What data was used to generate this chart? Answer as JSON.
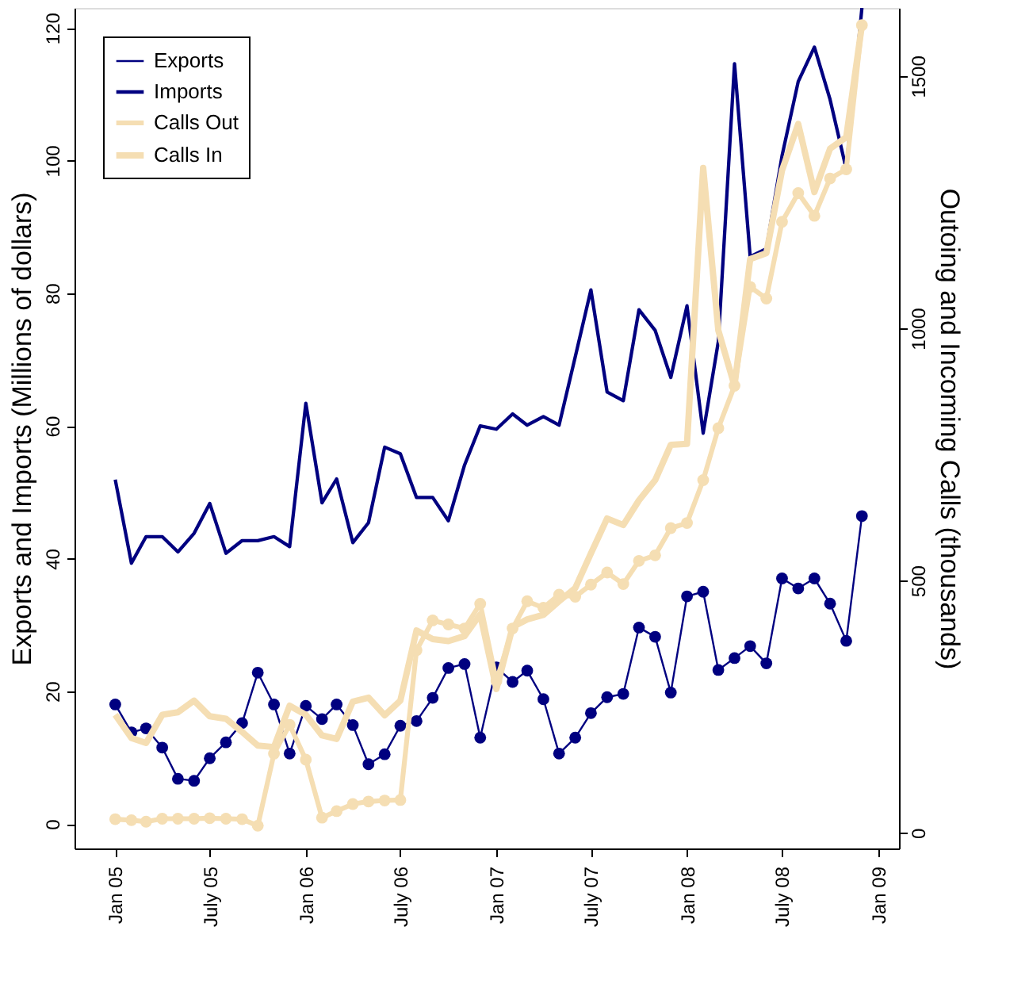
{
  "chart_data": {
    "type": "line",
    "ylabel": "Exports and Imports (Millions of dollars)",
    "y2label": "Outoing and Incoming Calls (thousands)",
    "x": [
      "2005-01",
      "2005-02",
      "2005-03",
      "2005-04",
      "2005-05",
      "2005-06",
      "2005-07",
      "2005-08",
      "2005-09",
      "2005-10",
      "2005-11",
      "2005-12",
      "2006-01",
      "2006-02",
      "2006-03",
      "2006-04",
      "2006-05",
      "2006-06",
      "2006-07",
      "2006-08",
      "2006-09",
      "2006-10",
      "2006-11",
      "2006-12",
      "2007-01",
      "2007-02",
      "2007-03",
      "2007-04",
      "2007-05",
      "2007-06",
      "2007-07",
      "2007-08",
      "2007-09",
      "2007-10",
      "2007-11",
      "2007-12",
      "2008-01",
      "2008-02",
      "2008-03",
      "2008-04",
      "2008-05",
      "2008-06",
      "2008-07",
      "2008-08",
      "2008-09",
      "2008-10",
      "2008-11",
      "2008-12"
    ],
    "series": [
      {
        "name": "Exports",
        "color": "#000080",
        "marker": "circle",
        "values": [
          18.0,
          13.8,
          14.4,
          11.5,
          6.8,
          6.5,
          9.9,
          12.3,
          15.2,
          22.8,
          18.0,
          10.6,
          17.8,
          15.8,
          18.0,
          14.9,
          9.0,
          10.5,
          14.8,
          15.5,
          19.0,
          23.5,
          24.1,
          13.0,
          23.6,
          21.4,
          23.1,
          18.8,
          10.6,
          13.0,
          16.7,
          19.1,
          19.6,
          29.6,
          28.2,
          19.8,
          34.3,
          35.0,
          23.2,
          25.0,
          26.8,
          24.2,
          37.0,
          35.5,
          37.0,
          33.2,
          27.6,
          46.4
        ]
      },
      {
        "name": "Imports",
        "color": "#000080",
        "marker": "none",
        "values": [
          51.9,
          39.3,
          43.3,
          43.3,
          41.0,
          43.8,
          48.3,
          40.8,
          42.7,
          42.7,
          43.3,
          41.8,
          63.4,
          48.4,
          52.0,
          42.4,
          45.4,
          56.8,
          55.8,
          49.2,
          49.2,
          45.7,
          54.1,
          60.0,
          59.5,
          61.8,
          60.1,
          61.4,
          60.1,
          70.4,
          80.5,
          65.1,
          63.8,
          77.5,
          74.4,
          67.3,
          78.1,
          58.9,
          72.7,
          114.6,
          85.5,
          86.7,
          100.7,
          111.9,
          117.1,
          109.2,
          98.7,
          123
        ]
      },
      {
        "name": "Calls Out",
        "color": "#f5deb3",
        "marker": "circle",
        "axis": "y2",
        "values": [
          27,
          25,
          22,
          28,
          28,
          28,
          29,
          28,
          27,
          14,
          157,
          214,
          145,
          30,
          43,
          57,
          62,
          64,
          65,
          362,
          421,
          413,
          405,
          454,
          301,
          405,
          459,
          446,
          472,
          468,
          492,
          516,
          493,
          539,
          550,
          604,
          614,
          699,
          802,
          886,
          1082,
          1059,
          1211,
          1268,
          1223,
          1297,
          1315,
          1601
        ]
      },
      {
        "name": "Calls In",
        "color": "#f5deb3",
        "marker": "none",
        "axis": "y2",
        "values": [
          234,
          188,
          178,
          234,
          239,
          262,
          231,
          226,
          200,
          173,
          170,
          252,
          234,
          193,
          186,
          260,
          268,
          233,
          262,
          401,
          384,
          380,
          390,
          433,
          285,
          408,
          423,
          432,
          459,
          485,
          554,
          623,
          610,
          659,
          699,
          769,
          771,
          1318,
          996,
          886,
          1137,
          1149,
          1313,
          1405,
          1270,
          1356,
          1379,
          1601
        ]
      }
    ],
    "xlim": [
      "2004-10-15",
      "2009-02-10"
    ],
    "xticks": [
      {
        "value": "2005-01",
        "label": "Jan 05"
      },
      {
        "value": "2005-07",
        "label": "July 05"
      },
      {
        "value": "2006-01",
        "label": "Jan 06"
      },
      {
        "value": "2006-07",
        "label": "July 06"
      },
      {
        "value": "2007-01",
        "label": "Jan 07"
      },
      {
        "value": "2007-07",
        "label": "July 07"
      },
      {
        "value": "2008-01",
        "label": "Jan 08"
      },
      {
        "value": "2008-07",
        "label": "July 08"
      },
      {
        "value": "2009-01",
        "label": "Jan 09"
      }
    ],
    "ylim": [
      -3.7,
      123
    ],
    "yticks": [
      0,
      20,
      40,
      60,
      80,
      100,
      120
    ],
    "y2lim": [
      -31,
      1635
    ],
    "y2ticks": [
      0,
      500,
      1000,
      1500
    ],
    "legend": "top left"
  }
}
